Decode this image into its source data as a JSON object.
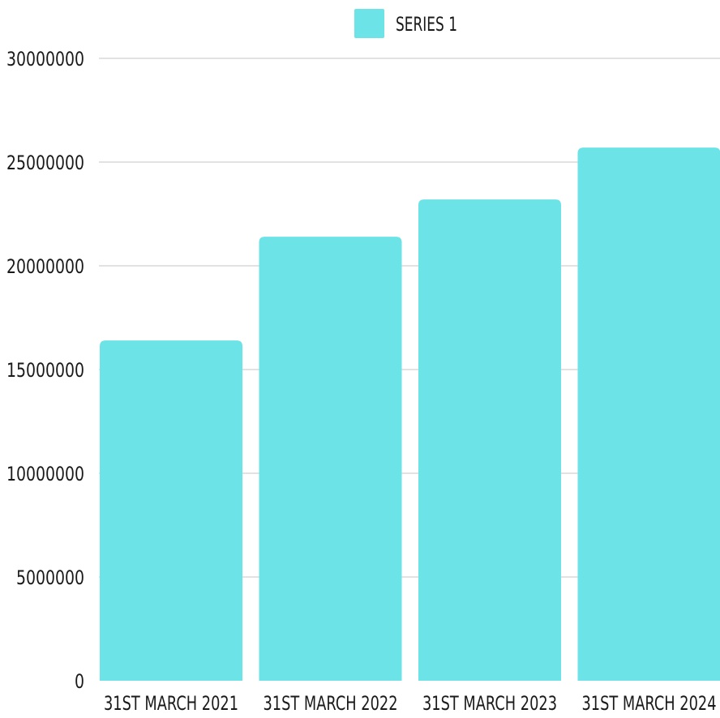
{
  "chart_data": {
    "type": "bar",
    "categories": [
      "31ST MARCH 2021",
      "31ST MARCH 2022",
      "31ST MARCH 2023",
      "31ST MARCH 2024"
    ],
    "series": [
      {
        "name": "SERIES 1",
        "values": [
          16400000,
          21400000,
          23200000,
          25700000
        ],
        "color": "#6ce3e6"
      }
    ],
    "y_ticks": [
      "0",
      "5000000",
      "10000000",
      "15000000",
      "20000000",
      "25000000",
      "30000000"
    ],
    "ylim": [
      0,
      30000000
    ],
    "grid": true,
    "legend_position": "top-center",
    "colors": {
      "bar": "#6ce3e6",
      "grid": "#d9d9d9",
      "text": "#1a1a1a"
    }
  }
}
